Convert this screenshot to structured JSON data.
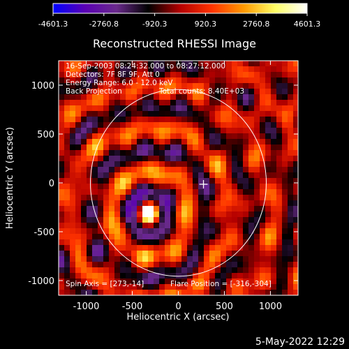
{
  "chart_data": {
    "type": "heatmap",
    "title": "Reconstructed RHESSI Image",
    "xlabel": "Heliocentric X (arcsec)",
    "ylabel": "Heliocentric Y (arcsec)",
    "xlim": [
      -1300,
      1300
    ],
    "ylim": [
      -1150,
      1250
    ],
    "xticks": [
      -1000,
      -500,
      0,
      500,
      1000
    ],
    "yticks": [
      -1000,
      -500,
      0,
      500,
      1000
    ],
    "colorbar": {
      "range": [
        -4601.3,
        4601.3
      ],
      "tick_labels": [
        "-4601.3",
        "-2760.8",
        "-920.3",
        "920.3",
        "2760.8",
        "4601.3"
      ],
      "colors": [
        "#0000ff",
        "#5a00b4",
        "#6a2a8c",
        "#000000",
        "#b40000",
        "#ff3300",
        "#ff9900",
        "#ffff66",
        "#ffffff"
      ]
    },
    "annotations": [
      "16-Sep-2003 08:24:32.000 to 08:27:12.000",
      "Detectors: 7F 8F 9F, Att 0",
      "Energy Range: 6.0 - 12.0 keV",
      "Back Projection",
      "Total counts: 8.40E+03"
    ],
    "spin_axis_label": "Spin Axis = [273,-14]",
    "flare_position_label": "Flare Position = [-316,-304]",
    "spin_axis": [
      273,
      -14
    ],
    "flare_position": [
      -316,
      -304
    ],
    "solar_limb_radius": 955
  },
  "footer": {
    "timestamp": "5-May-2022 12:29"
  },
  "icons": {
    "spin_marker": "plus-marker-icon",
    "limb": "solar-limb-circle"
  }
}
